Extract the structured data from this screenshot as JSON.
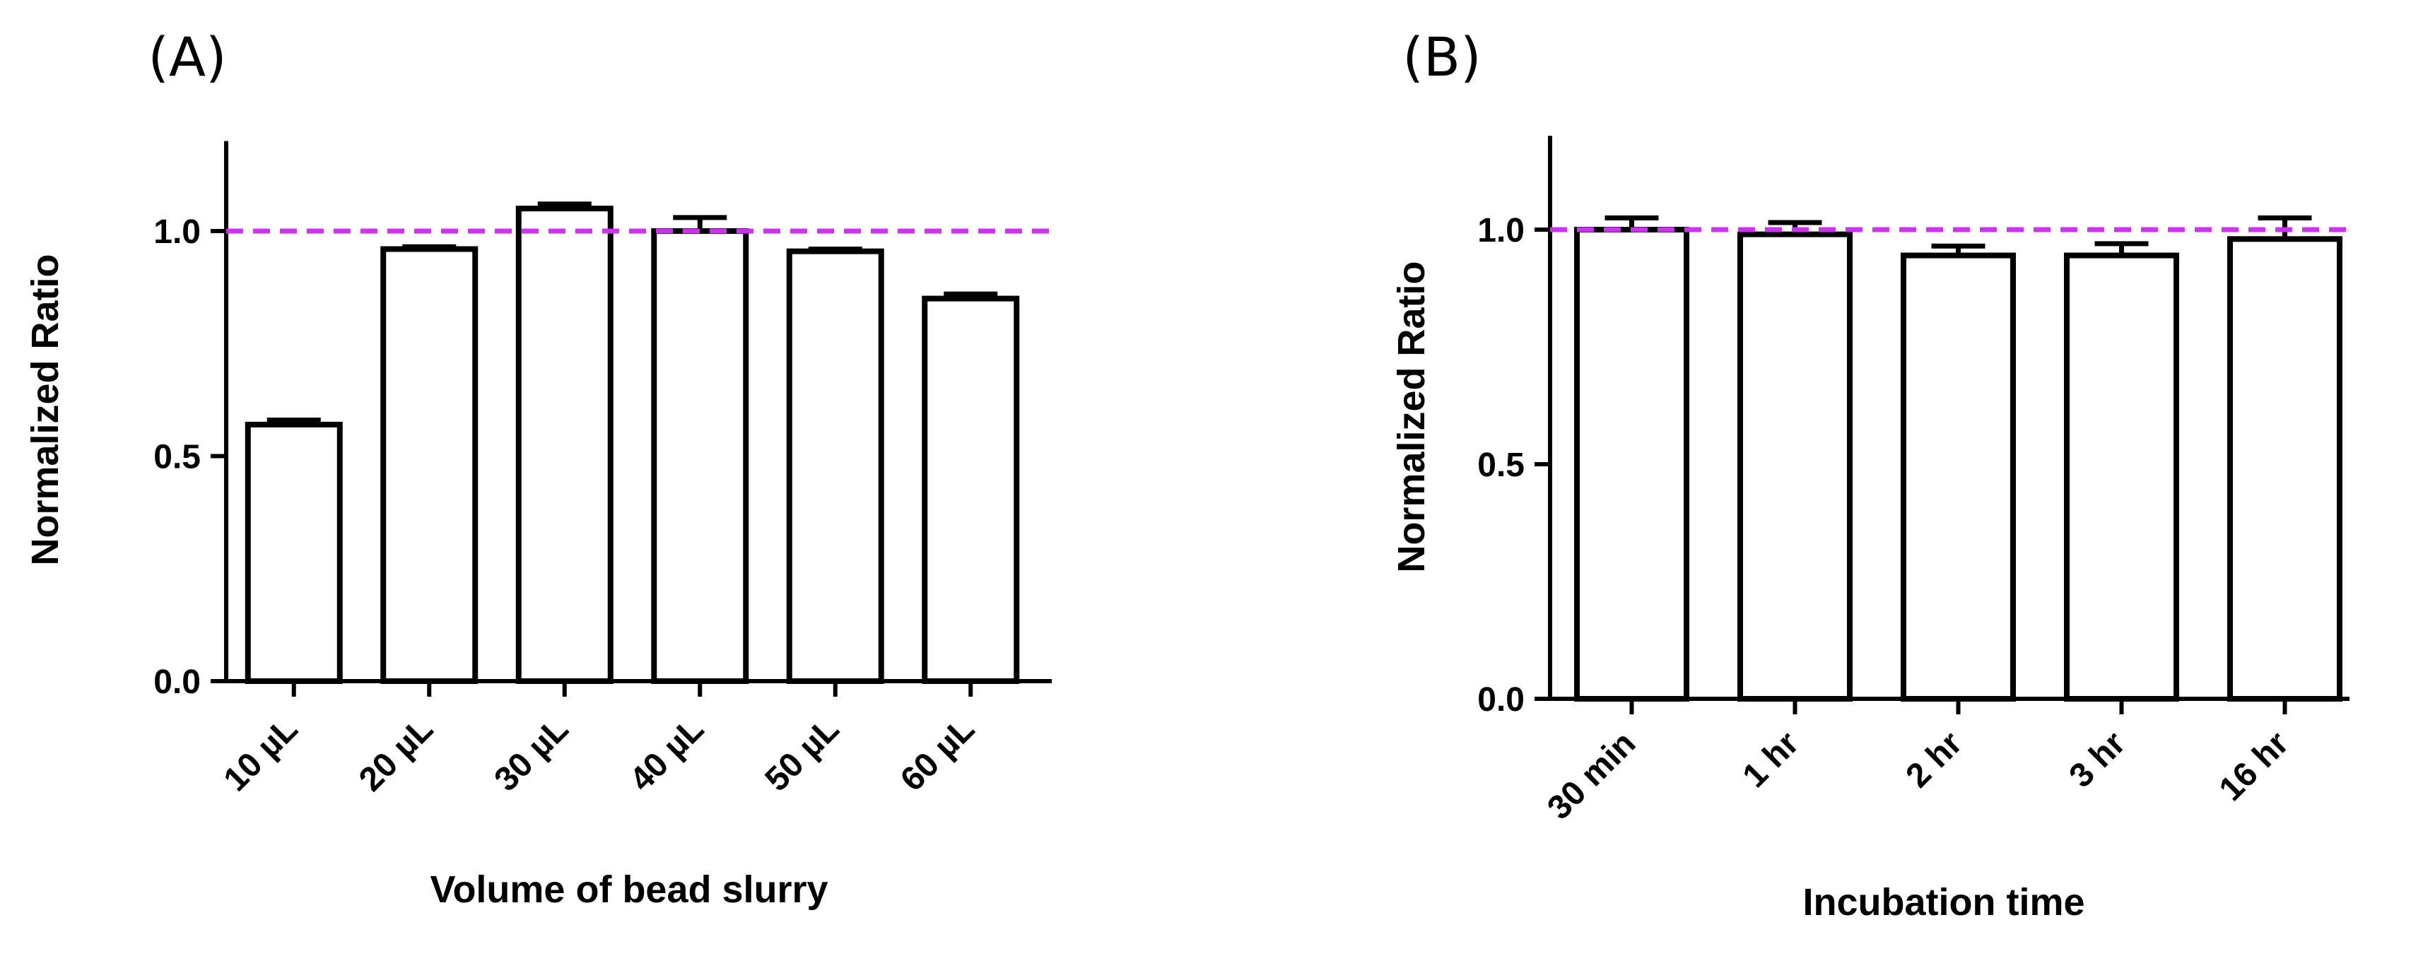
{
  "chart_data": [
    {
      "type": "bar",
      "panel_label": "(A)",
      "title": "",
      "xlabel": "Volume of bead slurry",
      "ylabel": "Normalized Ratio",
      "categories": [
        "10 µL",
        "20 µL",
        "30 µL",
        "40 µL",
        "50 µL",
        "60 µL"
      ],
      "values": [
        0.57,
        0.96,
        1.05,
        1.0,
        0.955,
        0.85
      ],
      "errors": [
        0.01,
        0.005,
        0.01,
        0.03,
        0.005,
        0.01
      ],
      "ylim": [
        0,
        1.2
      ],
      "yticks": [
        0.0,
        0.5,
        1.0
      ],
      "ytick_labels": [
        "0.0",
        "0.5",
        "1.0"
      ],
      "reference_line": 1.0,
      "reference_color": "#cc33ee",
      "bar_fill": "#ffffff",
      "bar_stroke": "#000000"
    },
    {
      "type": "bar",
      "panel_label": "(B)",
      "title": "",
      "xlabel": "Incubation time",
      "ylabel": "Normalized Ratio",
      "categories": [
        "30 min",
        "1 hr",
        "2 hr",
        "3 hr",
        "16 hr"
      ],
      "values": [
        1.0,
        0.99,
        0.945,
        0.945,
        0.98
      ],
      "errors": [
        0.025,
        0.025,
        0.02,
        0.025,
        0.045
      ],
      "ylim": [
        0,
        1.2
      ],
      "yticks": [
        0.0,
        0.5,
        1.0
      ],
      "ytick_labels": [
        "0.0",
        "0.5",
        "1.0"
      ],
      "reference_line": 1.0,
      "reference_color": "#cc33ee",
      "bar_fill": "#ffffff",
      "bar_stroke": "#000000"
    }
  ]
}
